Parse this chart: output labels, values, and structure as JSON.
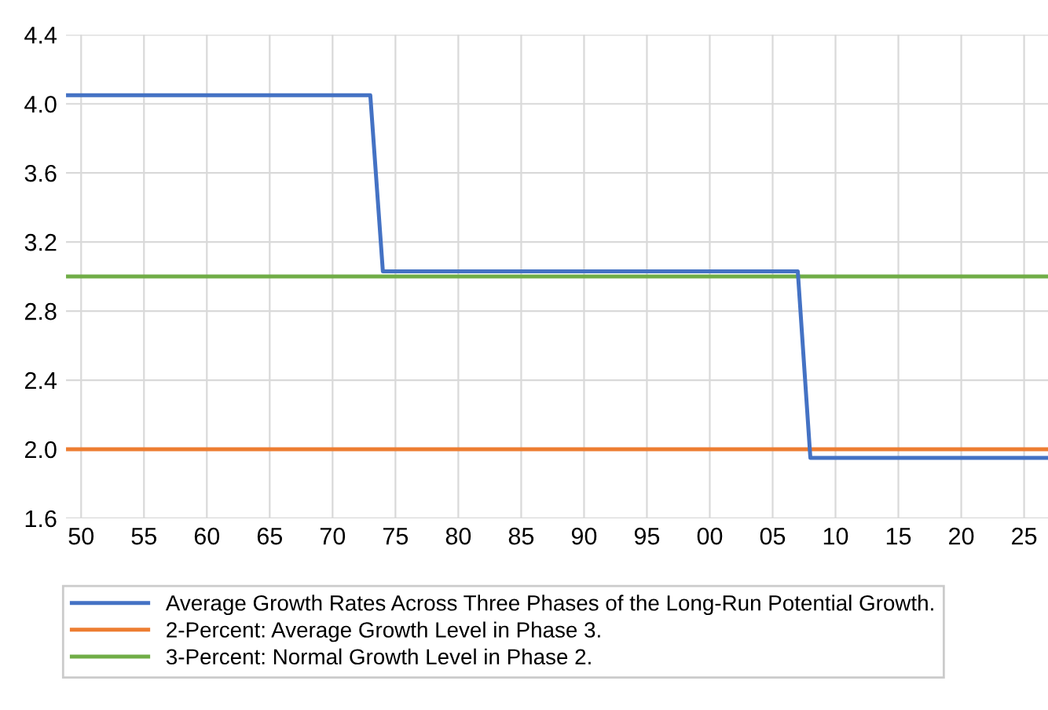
{
  "chart_data": {
    "type": "line",
    "series": [
      {
        "name": "Average Growth Rates Across Three Phases of the Long-Run Potential Growth.",
        "color": "#4472c4",
        "x": [
          1948.8,
          1973,
          1974,
          2007,
          2008,
          2026.9
        ],
        "values": [
          4.05,
          4.05,
          3.03,
          3.03,
          1.95,
          1.95
        ]
      }
    ],
    "ref_lines": [
      {
        "axis": "y",
        "value": 2.0,
        "label": "2-Percent: Average Growth Level in Phase 3.",
        "color": "#ed7d31"
      },
      {
        "axis": "y",
        "value": 3.0,
        "label": "3-Percent: Normal Growth Level in Phase 2.",
        "color": "#70ad47"
      }
    ],
    "xlim": [
      1948.8,
      2026.9
    ],
    "xticks": [
      {
        "value": 1950,
        "label": "50"
      },
      {
        "value": 1955,
        "label": "55"
      },
      {
        "value": 1960,
        "label": "60"
      },
      {
        "value": 1965,
        "label": "65"
      },
      {
        "value": 1970,
        "label": "70"
      },
      {
        "value": 1975,
        "label": "75"
      },
      {
        "value": 1980,
        "label": "80"
      },
      {
        "value": 1985,
        "label": "85"
      },
      {
        "value": 1990,
        "label": "90"
      },
      {
        "value": 1995,
        "label": "95"
      },
      {
        "value": 2000,
        "label": "00"
      },
      {
        "value": 2005,
        "label": "05"
      },
      {
        "value": 2010,
        "label": "10"
      },
      {
        "value": 2015,
        "label": "15"
      },
      {
        "value": 2020,
        "label": "20"
      },
      {
        "value": 2025,
        "label": "25"
      }
    ],
    "ylim": [
      1.6,
      4.4
    ],
    "yticks": [
      {
        "value": 1.6,
        "label": "1.6"
      },
      {
        "value": 2.0,
        "label": "2.0"
      },
      {
        "value": 2.4,
        "label": "2.4"
      },
      {
        "value": 2.8,
        "label": "2.8"
      },
      {
        "value": 3.2,
        "label": "3.2"
      },
      {
        "value": 3.6,
        "label": "3.6"
      },
      {
        "value": 4.0,
        "label": "4.0"
      },
      {
        "value": 4.4,
        "label": "4.4"
      }
    ],
    "grid": true,
    "legend": "bottom",
    "marker": "none",
    "line_style": "solid"
  }
}
